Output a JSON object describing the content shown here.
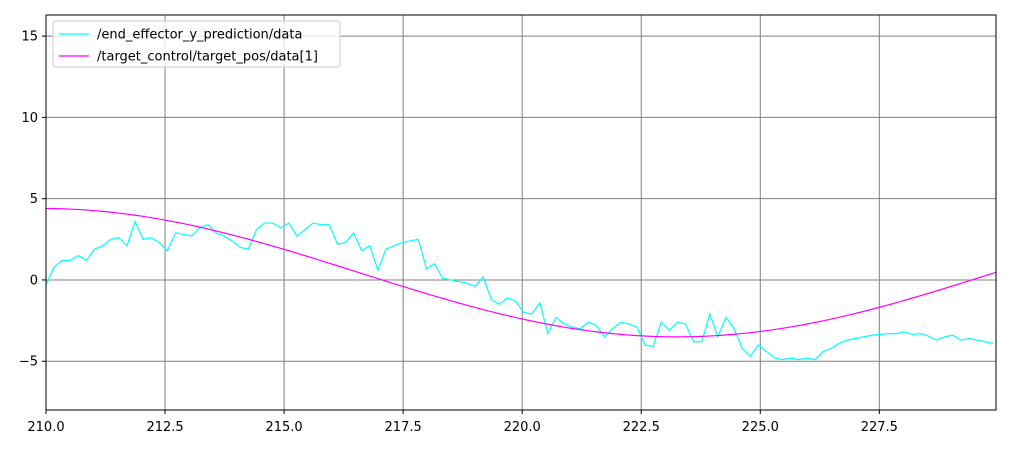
{
  "chart_data": {
    "type": "line",
    "title": "",
    "xlabel": "",
    "ylabel": "",
    "xlim": [
      210.0,
      229.95
    ],
    "ylim": [
      -8.0,
      16.3
    ],
    "xticks": [
      210.0,
      212.5,
      215.0,
      217.5,
      220.0,
      222.5,
      225.0,
      227.5
    ],
    "xtick_labels": [
      "210.0",
      "212.5",
      "215.0",
      "217.5",
      "220.0",
      "222.5",
      "225.0",
      "227.5"
    ],
    "yticks": [
      -5,
      0,
      5,
      10,
      15
    ],
    "ytick_labels": [
      "−5",
      "0",
      "5",
      "10",
      "15"
    ],
    "grid": true,
    "grid_color": "#808080",
    "legend_position": "top-left",
    "series": [
      {
        "name": "/end_effector_y_prediction/data",
        "color": "#00ffff",
        "x": [
          210.0,
          210.17,
          210.34,
          210.51,
          210.68,
          210.85,
          211.02,
          211.19,
          211.36,
          211.53,
          211.7,
          211.87,
          212.04,
          212.21,
          212.38,
          212.55,
          212.72,
          212.89,
          213.06,
          213.23,
          213.4,
          213.57,
          213.74,
          213.91,
          214.08,
          214.25,
          214.42,
          214.59,
          214.76,
          214.93,
          215.1,
          215.27,
          215.44,
          215.61,
          215.78,
          215.95,
          216.12,
          216.29,
          216.46,
          216.63,
          216.8,
          216.97,
          217.14,
          217.31,
          217.48,
          217.65,
          217.82,
          217.99,
          218.16,
          218.33,
          218.5,
          218.67,
          218.84,
          219.01,
          219.18,
          219.35,
          219.52,
          219.69,
          219.86,
          220.03,
          220.2,
          220.37,
          220.54,
          220.71,
          220.88,
          221.05,
          221.22,
          221.39,
          221.56,
          221.73,
          221.9,
          222.07,
          222.24,
          222.41,
          222.58,
          222.75,
          222.92,
          223.09,
          223.26,
          223.43,
          223.6,
          223.77,
          223.94,
          224.11,
          224.28,
          224.45,
          224.62,
          224.79,
          224.96,
          225.13,
          225.3,
          225.47,
          225.64,
          225.81,
          225.98,
          226.15,
          226.32,
          226.49,
          226.66,
          226.83,
          227.0,
          227.17,
          227.34,
          227.51,
          227.68,
          227.85,
          228.02,
          228.19,
          228.36,
          228.53,
          228.7,
          228.87,
          229.04,
          229.21,
          229.38,
          229.55,
          229.72,
          229.89
        ],
        "y": [
          -0.3,
          0.8,
          1.2,
          1.2,
          1.5,
          1.2,
          1.9,
          2.1,
          2.5,
          2.6,
          2.1,
          3.6,
          2.5,
          2.6,
          2.3,
          1.8,
          2.9,
          2.8,
          2.7,
          3.2,
          3.4,
          2.9,
          2.7,
          2.4,
          2.0,
          1.9,
          3.1,
          3.5,
          3.5,
          3.2,
          3.5,
          2.7,
          3.1,
          3.5,
          3.4,
          3.4,
          2.2,
          2.3,
          2.9,
          1.8,
          2.1,
          0.6,
          1.9,
          2.1,
          2.3,
          2.4,
          2.5,
          0.7,
          1.0,
          0.1,
          0.0,
          -0.1,
          -0.2,
          -0.4,
          0.2,
          -1.2,
          -1.5,
          -1.1,
          -1.3,
          -2.0,
          -2.1,
          -1.4,
          -3.3,
          -2.3,
          -2.7,
          -2.9,
          -3.0,
          -2.6,
          -2.8,
          -3.5,
          -3.0,
          -2.6,
          -2.7,
          -2.9,
          -4.0,
          -4.1,
          -2.6,
          -3.1,
          -2.6,
          -2.7,
          -3.8,
          -3.8,
          -2.1,
          -3.5,
          -2.3,
          -3.0,
          -4.2,
          -4.7,
          -4.0,
          -4.4,
          -4.8,
          -4.9,
          -4.8,
          -4.9,
          -4.8,
          -4.9,
          -4.4,
          -4.2,
          -3.9,
          -3.7,
          -3.6,
          -3.5,
          -3.4,
          -3.35,
          -3.3,
          -3.3,
          -3.2,
          -3.35,
          -3.3,
          -3.45,
          -3.7,
          -3.5,
          -3.4,
          -3.7,
          -3.6,
          -3.7,
          -3.8,
          -3.9
        ]
      },
      {
        "name": "/target_control/target_pos/data[1]",
        "color": "#ff00ff",
        "function": {
          "form": "center + amplitude * cos(2*pi*(x - phase_x)/period)",
          "center": 0.45,
          "amplitude": 3.95,
          "period": 26.7,
          "phase_x": 209.9
        }
      }
    ]
  }
}
